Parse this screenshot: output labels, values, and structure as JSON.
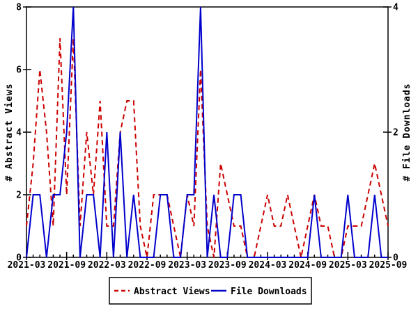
{
  "chart_data": {
    "type": "line",
    "title": "",
    "x_start": "2021-03",
    "x_end": "2025-09",
    "x_unit": "month",
    "months_span": 54,
    "x_tick_labels": [
      "2021-03",
      "2021-09",
      "2022-03",
      "2022-09",
      "2023-03",
      "2023-09",
      "2024-03",
      "2024-09",
      "2025-03",
      "2025-09"
    ],
    "left_axis": {
      "label": "# Abstract Views",
      "ticks": [
        0,
        2,
        4,
        6,
        8
      ],
      "range": [
        0,
        8
      ]
    },
    "right_axis": {
      "label": "# File Downloads",
      "ticks": [
        0,
        2,
        4
      ],
      "range": [
        0,
        4
      ]
    },
    "grid": "off",
    "frame_color": "#000000",
    "series": [
      {
        "name": "Abstract Views",
        "axis": "left",
        "color": "#cc0000",
        "style": "dashed",
        "values": [
          1,
          3,
          6,
          4,
          1,
          7,
          2,
          7,
          1,
          4,
          2,
          5,
          1,
          1,
          4,
          5,
          5,
          1,
          0,
          2,
          2,
          2,
          1,
          0,
          2,
          1,
          6,
          1,
          0,
          3,
          2,
          1,
          1,
          0,
          0,
          1,
          2,
          1,
          1,
          2,
          1,
          0,
          1,
          2,
          1,
          1,
          0,
          0,
          1,
          1,
          1,
          2,
          3,
          2,
          1
        ]
      },
      {
        "name": "File Downloads",
        "axis": "right",
        "color": "#0000cc",
        "style": "solid",
        "values": [
          0,
          1,
          1,
          0,
          1,
          1,
          2,
          4,
          0,
          1,
          1,
          0,
          2,
          0,
          2,
          0,
          1,
          0,
          0,
          0,
          1,
          1,
          0,
          0,
          1,
          1,
          4,
          0,
          1,
          0,
          0,
          1,
          1,
          0,
          0,
          0,
          0,
          0,
          0,
          0,
          0,
          0,
          0,
          1,
          0,
          0,
          0,
          0,
          1,
          0,
          0,
          0,
          1,
          0,
          0
        ]
      }
    ],
    "legend": {
      "position": "bottom-center",
      "entries": [
        "Abstract Views",
        "File Downloads"
      ]
    }
  }
}
